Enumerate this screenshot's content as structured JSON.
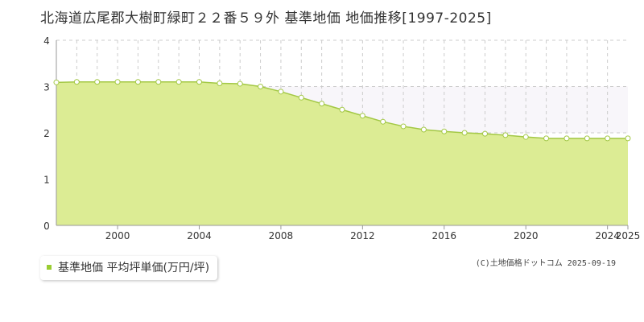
{
  "chart_data": {
    "type": "area",
    "title": "北海道広尾郡大樹町緑町２２番５９外 基準地価 地価推移[1997-2025]",
    "ylim": [
      0,
      4
    ],
    "yticks": [
      0,
      1,
      2,
      3,
      4
    ],
    "xlim": [
      1997,
      2025
    ],
    "xticks": [
      2000,
      2004,
      2008,
      2012,
      2016,
      2020,
      2024,
      2025
    ],
    "grid": true,
    "legend_position": "bottom-left",
    "series": [
      {
        "name": "基準地価 平均坪単価(万円/坪)",
        "color": "#9acd32",
        "x": [
          1997,
          1998,
          1999,
          2000,
          2001,
          2002,
          2003,
          2004,
          2005,
          2006,
          2007,
          2008,
          2009,
          2010,
          2011,
          2012,
          2013,
          2014,
          2015,
          2016,
          2017,
          2018,
          2019,
          2020,
          2021,
          2022,
          2023,
          2024,
          2025
        ],
        "values": [
          3.09,
          3.1,
          3.1,
          3.1,
          3.1,
          3.1,
          3.1,
          3.1,
          3.07,
          3.06,
          3.0,
          2.89,
          2.76,
          2.63,
          2.5,
          2.37,
          2.24,
          2.14,
          2.07,
          2.03,
          2.0,
          1.98,
          1.95,
          1.91,
          1.88,
          1.88,
          1.88,
          1.88,
          1.88
        ]
      }
    ]
  },
  "credit": "(C)土地価格ドットコム 2025-09-19",
  "colors": {
    "area_fill": "#dcec94",
    "line": "#a3c845",
    "point_fill": "#ffffff",
    "grid": "#cccccc",
    "axis": "#999999",
    "upper_band": "#f8f6fa"
  }
}
